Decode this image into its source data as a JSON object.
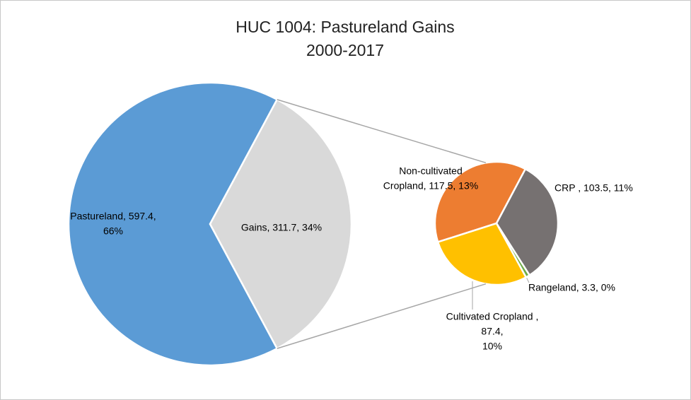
{
  "chart_data": {
    "type": "pie-of-pie",
    "title": "HUC 1004: Pastureland Gains",
    "subtitle": "2000-2017",
    "categories": [
      "Pastureland",
      "Gains"
    ],
    "values": [
      597.4,
      311.7
    ],
    "colors": [
      "#5b9bd5",
      "#d9d9d9"
    ],
    "value_labels": [
      [
        "Pastureland, 597.4,",
        "66%"
      ],
      [
        "Gains, 311.7, 34%"
      ]
    ],
    "breakdown": {
      "categories": [
        "Non-cultivated Cropland",
        "CRP",
        "Rangeland",
        "Cultivated Cropland"
      ],
      "values": [
        117.5,
        103.5,
        3.3,
        87.4
      ],
      "colors": [
        "#ed7d31",
        "#767171",
        "#70ad47",
        "#ffc000"
      ],
      "value_labels": [
        [
          "Non-cultivated",
          "Cropland, 117.5, 13%"
        ],
        [
          "CRP , 103.5, 11%"
        ],
        [
          "Rangeland, 3.3, 0%"
        ],
        [
          "Cultivated Cropland ,",
          "87.4,",
          "10%"
        ]
      ]
    }
  }
}
